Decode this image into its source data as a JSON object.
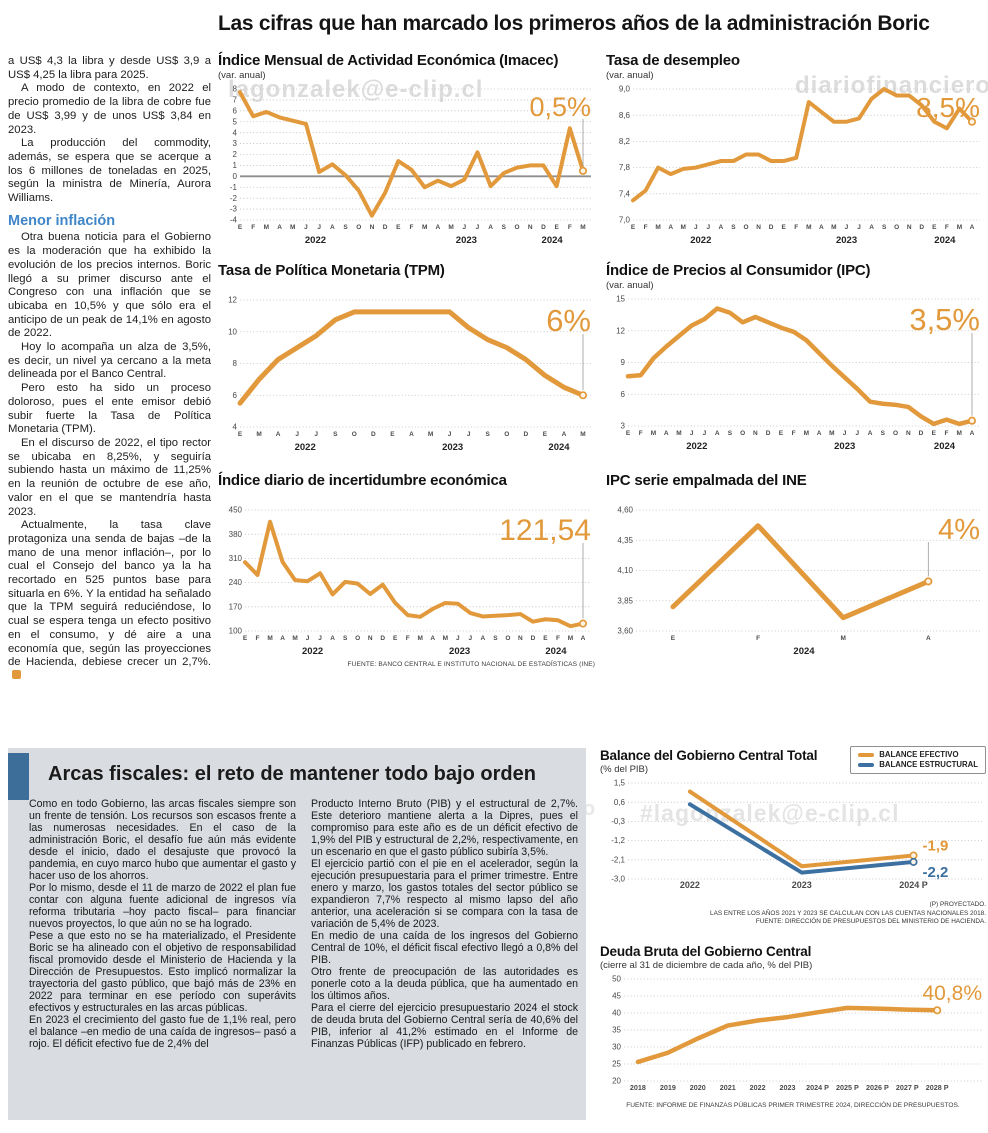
{
  "page_title": "Las cifras que han marcado los primeros años de la administración Boric",
  "colors": {
    "accent_orange": "#E2993B",
    "accent_blue": "#3C70A0",
    "heading_blue": "#3F86C9",
    "box_gray": "#D9DCE1"
  },
  "watermarks": [
    "lagonzalek@e-clip.cl",
    "diariofinanciero",
    "diariofinanciero",
    "#lagonzalek@e-clip.cl"
  ],
  "left_article": {
    "paragraphs_1": [
      "a US$ 4,3 la libra y desde US$ 3,9 a US$ 4,25 la libra para 2025.",
      "A modo de contexto, en 2022 el precio promedio de la libra de cobre fue de US$ 3,99 y de unos US$ 3,84 en 2023.",
      "La producción del commodity, además, se espera que se acerque a los 6 millones de toneladas en 2025, según la ministra de Minería, Aurora Williams."
    ],
    "heading": "Menor inflación",
    "paragraphs_2": [
      "Otra buena noticia para el Gobierno es la moderación que ha exhibido la evolución de los precios internos. Boric llegó a su primer discurso ante el Congreso con una inflación que se ubicaba en 10,5% y que sólo era el anticipo de un peak de 14,1% en agosto de 2022.",
      "Hoy lo acompaña un alza de 3,5%, es decir, un nivel ya cercano a la meta delineada por el Banco Central.",
      "Pero esto ha sido un proceso doloroso, pues el ente emisor debió subir fuerte la Tasa de Política Monetaria (TPM).",
      "En el discurso de 2022, el tipo rector se ubicaba en 8,25%, y seguiría subiendo hasta un máximo de 11,25% en la reunión de octubre de ese año, valor en el que se mantendría hasta 2023.",
      "Actualmente, la tasa clave protagoniza una senda de bajas –de la mano de una menor inflación–, por lo cual el Consejo del banco ya la ha recortado en 525 puntos base para situarla en 6%. Y la entidad ha señalado que la TPM seguirá reduciéndose, lo cual se espera tenga un efecto positivo en el consumo, y dé aire a una economía que, según las proyecciones de Hacienda, debiese crecer un 2,7%."
    ]
  },
  "fiscal_section": {
    "heading": "Arcas fiscales: el reto de mantener todo bajo orden",
    "col1": [
      "Como en todo Gobierno, las arcas fiscales siempre son un frente de tensión. Los recursos son escasos frente a las numerosas necesidades. En el caso de la administración Boric, el desafío fue aún más evidente desde el inicio, dado el desajuste que provocó la pandemia, en cuyo marco hubo que aumentar el gasto y hacer uso de los ahorros.",
      "Por lo mismo, desde el 11 de marzo de 2022 el plan fue contar con alguna fuente adicional de ingresos vía reforma tributaria –hoy pacto fiscal– para financiar nuevos proyectos, lo que aún no se ha logrado.",
      "Pese a que esto no se ha materializado, el Presidente Boric se ha alineado con el objetivo de responsabilidad fiscal promovido desde el Ministerio de Hacienda y la Dirección de Presupuestos. Esto implicó normalizar la trayectoria del gasto público, que bajó más de 23% en 2022 para terminar en ese período con superávits efectivos y estructurales en las arcas públicas.",
      "En 2023 el crecimiento del gasto fue de 1,1% real, pero el balance –en medio de una caída de ingresos–  pasó a rojo. El déficit efectivo fue de 2,4% del"
    ],
    "col2": [
      "Producto Interno Bruto (PIB) y el estructural de 2,7%. Este deterioro mantiene alerta a la Dipres, pues el compromiso para este año es de un déficit efectivo de 1,9% del PIB y estructural de 2,2%, respectivamente, en un escenario en que el gasto público subiría 3,5%.",
      "El ejercicio partió con el pie en el acelerador, según la ejecución presupuestaria para el primer trimestre. Entre enero y marzo, los gastos totales del sector público se expandieron 7,7% respecto al mismo lapso del año anterior, una aceleración si se compara con la tasa de variación de 5,4% de 2023.",
      "En medio de una caída de los ingresos del Gobierno Central de 10%, el déficit fiscal efectivo llegó a 0,8% del PIB.",
      "Otro frente de preocupación de las autoridades es ponerle coto a la deuda pública, que ha aumentado en los últimos años.",
      "Para el cierre del ejercicio presupuestario 2024 el stock de deuda bruta del Gobierno Central sería de 40,6% del PIB, inferior al 41,2% estimado en el Informe de Finanzas Públicas (IFP) publicado en febrero."
    ]
  },
  "chart_data": {
    "imacec": {
      "type": "line",
      "title": "Índice Mensual de Actividad Económica (Imacec)",
      "subtitle": "(var. anual)",
      "value_label": "0,5%",
      "ylim": [
        -4,
        8
      ],
      "zero_line": 0,
      "y_ticks": [
        [
          8,
          "8"
        ],
        [
          7,
          "7"
        ],
        [
          6,
          "6"
        ],
        [
          5,
          "5"
        ],
        [
          4,
          "4"
        ],
        [
          3,
          "3"
        ],
        [
          2,
          "2"
        ],
        [
          1,
          "1"
        ],
        [
          0,
          "0"
        ],
        [
          -1,
          "-1"
        ],
        [
          -2,
          "-2"
        ],
        [
          -3,
          "-3"
        ],
        [
          -4,
          "-4"
        ]
      ],
      "x_ticks": [
        "E",
        "F",
        "M",
        "A",
        "M",
        "J",
        "J",
        "A",
        "S",
        "O",
        "N",
        "D",
        "E",
        "F",
        "M",
        "A",
        "M",
        "J",
        "J",
        "A",
        "S",
        "O",
        "N",
        "D",
        "E",
        "F",
        "M"
      ],
      "years": [
        [
          "2022",
          0.22
        ],
        [
          "2023",
          0.66
        ],
        [
          "2024",
          0.91
        ]
      ],
      "values": [
        7.7,
        5.5,
        5.9,
        5.4,
        5.1,
        4.8,
        0.4,
        1.1,
        0.1,
        -1.3,
        -3.6,
        -1.5,
        1.4,
        0.6,
        -1.0,
        -0.4,
        -0.9,
        -0.3,
        2.2,
        -0.9,
        0.3,
        0.8,
        1.0,
        1.0,
        -0.9,
        4.4,
        0.5
      ]
    },
    "desempleo": {
      "type": "line",
      "title": "Tasa de desempleo",
      "subtitle": "(var. anual)",
      "value_label": "8,5%",
      "ylim": [
        7.0,
        9.0
      ],
      "y_ticks": [
        [
          9.0,
          "9,0"
        ],
        [
          8.6,
          "8,6"
        ],
        [
          8.2,
          "8,2"
        ],
        [
          7.8,
          "7,8"
        ],
        [
          7.4,
          "7,4"
        ],
        [
          7.0,
          "7,0"
        ]
      ],
      "x_ticks": [
        "E",
        "F",
        "M",
        "A",
        "M",
        "J",
        "J",
        "A",
        "S",
        "O",
        "N",
        "D",
        "E",
        "F",
        "M",
        "A",
        "M",
        "J",
        "J",
        "A",
        "S",
        "O",
        "N",
        "D",
        "E",
        "F",
        "M",
        "A"
      ],
      "years": [
        [
          "2022",
          0.2
        ],
        [
          "2023",
          0.63
        ],
        [
          "2024",
          0.92
        ]
      ],
      "values": [
        7.3,
        7.45,
        7.8,
        7.7,
        7.78,
        7.8,
        7.85,
        7.9,
        7.9,
        8.0,
        8.0,
        7.9,
        7.9,
        7.95,
        8.8,
        8.65,
        8.5,
        8.5,
        8.55,
        8.85,
        9.0,
        8.9,
        8.9,
        8.75,
        8.5,
        8.4,
        8.7,
        8.5
      ]
    },
    "tpm": {
      "type": "line",
      "title": "Tasa de Política Monetaria (TPM)",
      "value_label": "6%",
      "ylim": [
        4,
        12
      ],
      "y_ticks": [
        [
          12,
          "12"
        ],
        [
          10,
          "10"
        ],
        [
          8,
          "8"
        ],
        [
          6,
          "6"
        ],
        [
          4,
          "4"
        ]
      ],
      "x_ticks": [
        "E",
        "M",
        "A",
        "J",
        "J",
        "S",
        "O",
        "D",
        "E",
        "A",
        "M",
        "J",
        "J",
        "S",
        "O",
        "D",
        "E",
        "A",
        "M"
      ],
      "years": [
        [
          "2022",
          0.19
        ],
        [
          "2023",
          0.62
        ],
        [
          "2024",
          0.93
        ]
      ],
      "values": [
        5.5,
        7.0,
        8.25,
        9.0,
        9.75,
        10.75,
        11.25,
        11.25,
        11.25,
        11.25,
        11.25,
        11.25,
        10.25,
        9.5,
        9.0,
        8.25,
        7.25,
        6.5,
        6.0
      ]
    },
    "ipc": {
      "type": "line",
      "title": "Índice de Precios al Consumidor (IPC)",
      "subtitle": "(var. anual)",
      "value_label": "3,5%",
      "ylim": [
        3,
        15
      ],
      "y_ticks": [
        [
          15,
          "15"
        ],
        [
          12,
          "12"
        ],
        [
          9,
          "9"
        ],
        [
          6,
          "6"
        ],
        [
          3,
          "3"
        ]
      ],
      "x_ticks": [
        "E",
        "F",
        "M",
        "A",
        "M",
        "J",
        "J",
        "A",
        "S",
        "O",
        "N",
        "D",
        "E",
        "F",
        "M",
        "A",
        "M",
        "J",
        "J",
        "A",
        "S",
        "O",
        "N",
        "D",
        "E",
        "F",
        "M",
        "A"
      ],
      "years": [
        [
          "2022",
          0.2
        ],
        [
          "2023",
          0.63
        ],
        [
          "2024",
          0.92
        ]
      ],
      "values": [
        7.7,
        7.8,
        9.4,
        10.5,
        11.5,
        12.5,
        13.1,
        14.1,
        13.7,
        12.8,
        13.3,
        12.8,
        12.3,
        11.9,
        11.1,
        9.9,
        8.7,
        7.6,
        6.5,
        5.3,
        5.1,
        5.0,
        4.8,
        3.9,
        3.2,
        3.6,
        3.2,
        3.5
      ]
    },
    "incertidumbre": {
      "type": "line",
      "title": "Índice diario de incertidumbre económica",
      "value_label": "121,54",
      "ylim": [
        100,
        450
      ],
      "y_ticks": [
        [
          450,
          "450"
        ],
        [
          380,
          "380"
        ],
        [
          310,
          "310"
        ],
        [
          240,
          "240"
        ],
        [
          170,
          "170"
        ],
        [
          100,
          "100"
        ]
      ],
      "x_ticks": [
        "E",
        "F",
        "M",
        "A",
        "M",
        "J",
        "J",
        "A",
        "S",
        "O",
        "N",
        "D",
        "E",
        "F",
        "M",
        "A",
        "M",
        "J",
        "J",
        "A",
        "S",
        "O",
        "N",
        "D",
        "E",
        "F",
        "M",
        "A"
      ],
      "years": [
        [
          "2022",
          0.2
        ],
        [
          "2023",
          0.635
        ],
        [
          "2024",
          0.92
        ]
      ],
      "values": [
        299,
        262,
        416,
        300,
        247,
        244,
        267,
        206,
        242,
        237,
        207,
        234,
        181,
        146,
        141,
        164,
        181,
        179,
        152,
        142,
        144,
        146,
        149,
        127,
        134,
        131,
        114,
        121.54
      ],
      "source": "FUENTE: BANCO CENTRAL E INSTITUTO NACIONAL DE ESTADÍSTICAS (INE)"
    },
    "ipc_empalmada": {
      "type": "line",
      "title": "IPC serie empalmada del INE",
      "value_label": "4%",
      "ylim": [
        3.6,
        4.6
      ],
      "y_ticks": [
        [
          4.6,
          "4,60"
        ],
        [
          4.35,
          "4,35"
        ],
        [
          4.1,
          "4,10"
        ],
        [
          3.85,
          "3,85"
        ],
        [
          3.6,
          "3,60"
        ]
      ],
      "x_ticks": [
        "E",
        "F",
        "M",
        "A"
      ],
      "xspan": [
        0.11,
        0.87
      ],
      "years": [
        [
          "2024",
          0.5
        ]
      ],
      "values": [
        3.8,
        4.47,
        3.71,
        4.01
      ]
    },
    "balance": {
      "type": "line",
      "title": "Balance del Gobierno Central Total",
      "subtitle": "(% del PIB)",
      "legend": [
        {
          "label": "BALANCE EFECTIVO",
          "color": "#E2993B"
        },
        {
          "label": "BALANCE ESTRUCTURAL",
          "color": "#3C70A0"
        }
      ],
      "ylim": [
        -3.0,
        1.5
      ],
      "y_ticks": [
        [
          1.5,
          "1,5"
        ],
        [
          0.6,
          "0,6"
        ],
        [
          -0.3,
          "-0,3"
        ],
        [
          -1.2,
          "-1,2"
        ],
        [
          -2.1,
          "-2,1"
        ],
        [
          -3.0,
          "-3,0"
        ]
      ],
      "x_ticks": [
        "2022",
        "2023",
        "2024 P"
      ],
      "xspan": [
        0.18,
        0.83
      ],
      "series": [
        {
          "name": "BALANCE EFECTIVO",
          "values": [
            1.1,
            -2.4,
            -1.9
          ],
          "end_label": "-1,9"
        },
        {
          "name": "BALANCE ESTRUCTURAL",
          "values": [
            0.5,
            -2.7,
            -2.2
          ],
          "end_label": "-2,2"
        }
      ],
      "notes": [
        "(P) PROYECTADO.",
        "LAS ENTRE LOS AÑOS 2021 Y 2023 SE CALCULAN  CON LAS CUENTAS NACIONALES 2018.",
        "FUENTE: DIRECCIÓN DE PRESUPUESTOS DEL MINISTERIO DE HACIENDA."
      ]
    },
    "deuda": {
      "type": "line",
      "title": "Deuda Bruta del Gobierno Central",
      "subtitle": "(cierre al 31 de diciembre de cada año, % del PIB)",
      "value_label": "40,8%",
      "ylim": [
        20,
        50
      ],
      "y_ticks": [
        [
          50,
          "50"
        ],
        [
          45,
          "45"
        ],
        [
          40,
          "40"
        ],
        [
          35,
          "35"
        ],
        [
          30,
          "30"
        ],
        [
          25,
          "25"
        ],
        [
          20,
          "20"
        ]
      ],
      "x_ticks": [
        "2018",
        "2019",
        "2020",
        "2021",
        "2022",
        "2023",
        "2024 P",
        "2025 P",
        "2026 P",
        "2027 P",
        "2028 P"
      ],
      "xspan": [
        0.04,
        0.9
      ],
      "values": [
        25.6,
        28.3,
        32.5,
        36.3,
        37.8,
        38.8,
        40.2,
        41.5,
        41.3,
        41.0,
        40.8
      ],
      "source": "FUENTE: INFORME DE FINANZAS PÚBLICAS PRIMER TRIMESTRE 2024, DIRECCIÓN DE PRESUPUESTOS."
    }
  }
}
